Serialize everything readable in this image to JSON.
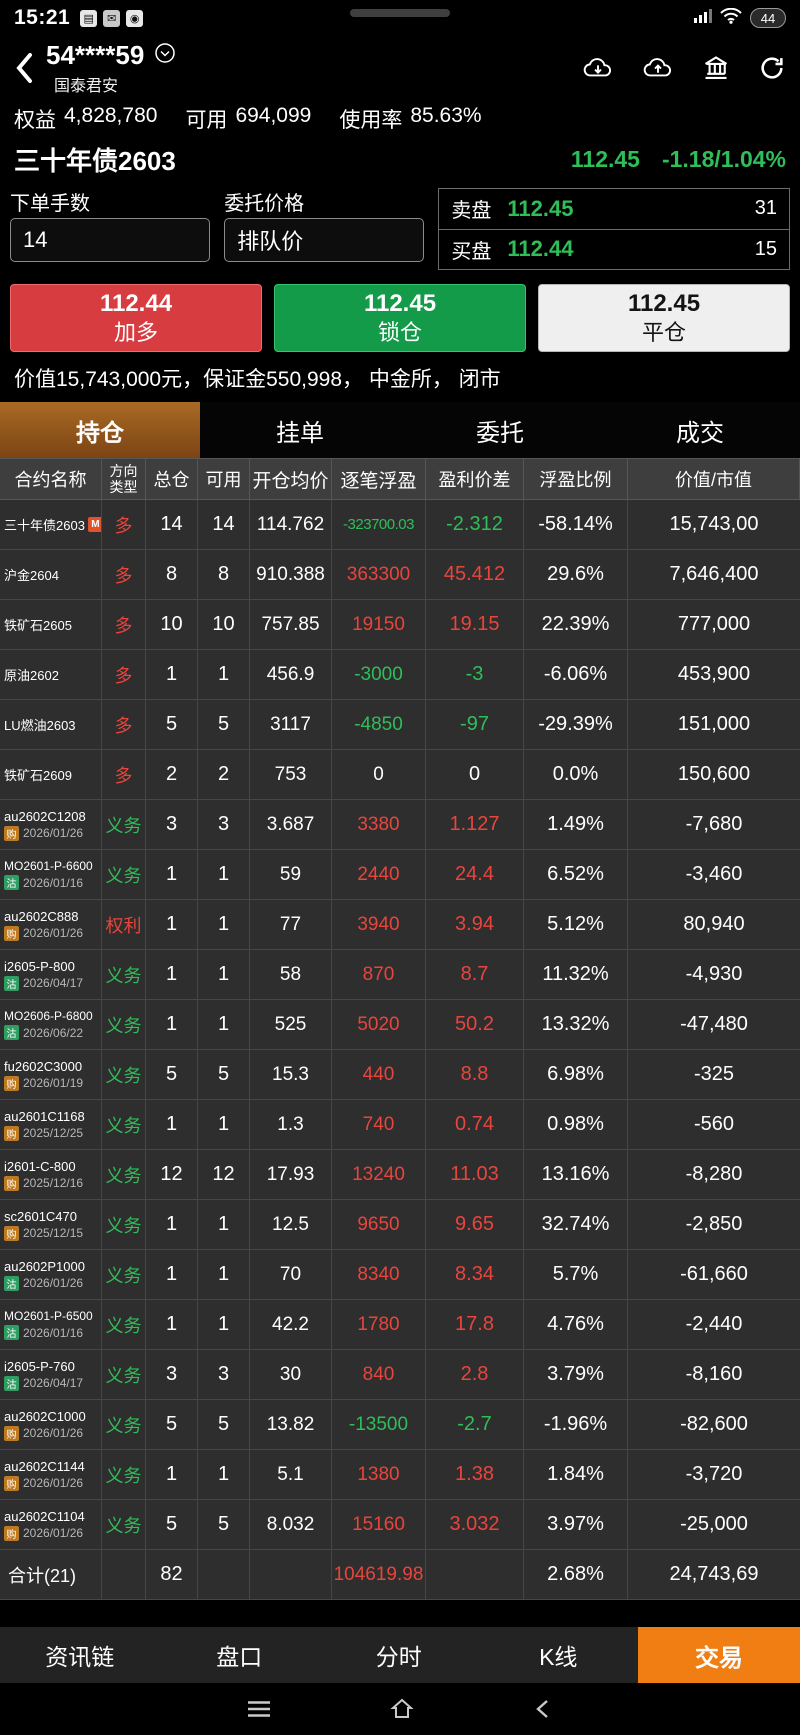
{
  "colors": {
    "up": "#e8453c",
    "down": "#2fbe58",
    "flat": "#ffffff",
    "accent_orange": "#f07e13",
    "tab_active_brown": "#96591f"
  },
  "status_bar": {
    "time": "15:21",
    "battery": "44"
  },
  "header": {
    "account": "54****59",
    "broker": "国泰君安"
  },
  "account_summary": [
    {
      "label": "权益",
      "value": "4,828,780"
    },
    {
      "label": "可用",
      "value": "694,099"
    },
    {
      "label": "使用率",
      "value": "85.63%"
    }
  ],
  "quote": {
    "name": "三十年债2603",
    "price": "112.45",
    "change": "-1.18/1.04%"
  },
  "order": {
    "qty_label": "下单手数",
    "qty": "14",
    "price_label": "委托价格",
    "price_mode": "排队价",
    "ask_label": "卖盘",
    "ask_price": "112.45",
    "ask_vol": "31",
    "bid_label": "买盘",
    "bid_price": "112.44",
    "bid_vol": "15"
  },
  "actions": {
    "buy": {
      "price": "112.44",
      "label": "加多"
    },
    "lock": {
      "price": "112.45",
      "label": "锁仓"
    },
    "close": {
      "price": "112.45",
      "label": "平仓"
    }
  },
  "position_info": "价值15,743,000元，保证金550,998， 中金所， 闭市",
  "tabs": [
    {
      "label": "持仓",
      "active": true
    },
    {
      "label": "挂单",
      "active": false
    },
    {
      "label": "委托",
      "active": false
    },
    {
      "label": "成交",
      "active": false
    }
  ],
  "table": {
    "headers": [
      "合约名称",
      "方向|类型",
      "总仓",
      "可用",
      "开仓均价",
      "逐笔浮盈",
      "盈利价差",
      "浮盈比例",
      "价值/市值"
    ],
    "rows": [
      {
        "name": "三十年债2603",
        "tag": "M",
        "tag_type": "main",
        "date": "",
        "dir": "多",
        "dir_c": "u",
        "total": "14",
        "avail": "14",
        "avg": "114.762",
        "pnl": "-323700.03",
        "pnl_c": "d",
        "diff": "-2.312",
        "diff_c": "d",
        "ratio": "-58.14%",
        "value": "15,743,00"
      },
      {
        "name": "沪金2604",
        "tag": "",
        "tag_type": "",
        "date": "",
        "dir": "多",
        "dir_c": "u",
        "total": "8",
        "avail": "8",
        "avg": "910.388",
        "pnl": "363300",
        "pnl_c": "u",
        "diff": "45.412",
        "diff_c": "u",
        "ratio": "29.6%",
        "value": "7,646,400"
      },
      {
        "name": "铁矿石2605",
        "tag": "",
        "tag_type": "",
        "date": "",
        "dir": "多",
        "dir_c": "u",
        "total": "10",
        "avail": "10",
        "avg": "757.85",
        "pnl": "19150",
        "pnl_c": "u",
        "diff": "19.15",
        "diff_c": "u",
        "ratio": "22.39%",
        "value": "777,000"
      },
      {
        "name": "原油2602",
        "tag": "",
        "tag_type": "",
        "date": "",
        "dir": "多",
        "dir_c": "u",
        "total": "1",
        "avail": "1",
        "avg": "456.9",
        "pnl": "-3000",
        "pnl_c": "d",
        "diff": "-3",
        "diff_c": "d",
        "ratio": "-6.06%",
        "value": "453,900"
      },
      {
        "name": "LU燃油2603",
        "tag": "",
        "tag_type": "",
        "date": "",
        "dir": "多",
        "dir_c": "u",
        "total": "5",
        "avail": "5",
        "avg": "3117",
        "pnl": "-4850",
        "pnl_c": "d",
        "diff": "-97",
        "diff_c": "d",
        "ratio": "-29.39%",
        "value": "151,000"
      },
      {
        "name": "铁矿石2609",
        "tag": "",
        "tag_type": "",
        "date": "",
        "dir": "多",
        "dir_c": "u",
        "total": "2",
        "avail": "2",
        "avg": "753",
        "pnl": "0",
        "pnl_c": "f",
        "diff": "0",
        "diff_c": "f",
        "ratio": "0.0%",
        "value": "150,600"
      },
      {
        "name": "au2602C1208",
        "tag": "购",
        "tag_type": "call",
        "date": "2026/01/26",
        "dir": "义务",
        "dir_c": "d",
        "total": "3",
        "avail": "3",
        "avg": "3.687",
        "pnl": "3380",
        "pnl_c": "u",
        "diff": "1.127",
        "diff_c": "u",
        "ratio": "1.49%",
        "value": "-7,680"
      },
      {
        "name": "MO2601-P-6600",
        "tag": "沽",
        "tag_type": "put",
        "date": "2026/01/16",
        "dir": "义务",
        "dir_c": "d",
        "total": "1",
        "avail": "1",
        "avg": "59",
        "pnl": "2440",
        "pnl_c": "u",
        "diff": "24.4",
        "diff_c": "u",
        "ratio": "6.52%",
        "value": "-3,460"
      },
      {
        "name": "au2602C888",
        "tag": "购",
        "tag_type": "call",
        "date": "2026/01/26",
        "dir": "权利",
        "dir_c": "u",
        "total": "1",
        "avail": "1",
        "avg": "77",
        "pnl": "3940",
        "pnl_c": "u",
        "diff": "3.94",
        "diff_c": "u",
        "ratio": "5.12%",
        "value": "80,940"
      },
      {
        "name": "i2605-P-800",
        "tag": "沽",
        "tag_type": "put",
        "date": "2026/04/17",
        "dir": "义务",
        "dir_c": "d",
        "total": "1",
        "avail": "1",
        "avg": "58",
        "pnl": "870",
        "pnl_c": "u",
        "diff": "8.7",
        "diff_c": "u",
        "ratio": "11.32%",
        "value": "-4,930"
      },
      {
        "name": "MO2606-P-6800",
        "tag": "沽",
        "tag_type": "put",
        "date": "2026/06/22",
        "dir": "义务",
        "dir_c": "d",
        "total": "1",
        "avail": "1",
        "avg": "525",
        "pnl": "5020",
        "pnl_c": "u",
        "diff": "50.2",
        "diff_c": "u",
        "ratio": "13.32%",
        "value": "-47,480"
      },
      {
        "name": "fu2602C3000",
        "tag": "购",
        "tag_type": "call",
        "date": "2026/01/19",
        "dir": "义务",
        "dir_c": "d",
        "total": "5",
        "avail": "5",
        "avg": "15.3",
        "pnl": "440",
        "pnl_c": "u",
        "diff": "8.8",
        "diff_c": "u",
        "ratio": "6.98%",
        "value": "-325"
      },
      {
        "name": "au2601C1168",
        "tag": "购",
        "tag_type": "call",
        "date": "2025/12/25",
        "dir": "义务",
        "dir_c": "d",
        "total": "1",
        "avail": "1",
        "avg": "1.3",
        "pnl": "740",
        "pnl_c": "u",
        "diff": "0.74",
        "diff_c": "u",
        "ratio": "0.98%",
        "value": "-560"
      },
      {
        "name": "i2601-C-800",
        "tag": "购",
        "tag_type": "call",
        "date": "2025/12/16",
        "dir": "义务",
        "dir_c": "d",
        "total": "12",
        "avail": "12",
        "avg": "17.93",
        "pnl": "13240",
        "pnl_c": "u",
        "diff": "11.03",
        "diff_c": "u",
        "ratio": "13.16%",
        "value": "-8,280"
      },
      {
        "name": "sc2601C470",
        "tag": "购",
        "tag_type": "call",
        "date": "2025/12/15",
        "dir": "义务",
        "dir_c": "d",
        "total": "1",
        "avail": "1",
        "avg": "12.5",
        "pnl": "9650",
        "pnl_c": "u",
        "diff": "9.65",
        "diff_c": "u",
        "ratio": "32.74%",
        "value": "-2,850"
      },
      {
        "name": "au2602P1000",
        "tag": "沽",
        "tag_type": "put",
        "date": "2026/01/26",
        "dir": "义务",
        "dir_c": "d",
        "total": "1",
        "avail": "1",
        "avg": "70",
        "pnl": "8340",
        "pnl_c": "u",
        "diff": "8.34",
        "diff_c": "u",
        "ratio": "5.7%",
        "value": "-61,660"
      },
      {
        "name": "MO2601-P-6500",
        "tag": "沽",
        "tag_type": "put",
        "date": "2026/01/16",
        "dir": "义务",
        "dir_c": "d",
        "total": "1",
        "avail": "1",
        "avg": "42.2",
        "pnl": "1780",
        "pnl_c": "u",
        "diff": "17.8",
        "diff_c": "u",
        "ratio": "4.76%",
        "value": "-2,440"
      },
      {
        "name": "i2605-P-760",
        "tag": "沽",
        "tag_type": "put",
        "date": "2026/04/17",
        "dir": "义务",
        "dir_c": "d",
        "total": "3",
        "avail": "3",
        "avg": "30",
        "pnl": "840",
        "pnl_c": "u",
        "diff": "2.8",
        "diff_c": "u",
        "ratio": "3.79%",
        "value": "-8,160"
      },
      {
        "name": "au2602C1000",
        "tag": "购",
        "tag_type": "call",
        "date": "2026/01/26",
        "dir": "义务",
        "dir_c": "d",
        "total": "5",
        "avail": "5",
        "avg": "13.82",
        "pnl": "-13500",
        "pnl_c": "d",
        "diff": "-2.7",
        "diff_c": "d",
        "ratio": "-1.96%",
        "value": "-82,600"
      },
      {
        "name": "au2602C1144",
        "tag": "购",
        "tag_type": "call",
        "date": "2026/01/26",
        "dir": "义务",
        "dir_c": "d",
        "total": "1",
        "avail": "1",
        "avg": "5.1",
        "pnl": "1380",
        "pnl_c": "u",
        "diff": "1.38",
        "diff_c": "u",
        "ratio": "1.84%",
        "value": "-3,720"
      },
      {
        "name": "au2602C1104",
        "tag": "购",
        "tag_type": "call",
        "date": "2026/01/26",
        "dir": "义务",
        "dir_c": "d",
        "total": "5",
        "avail": "5",
        "avg": "8.032",
        "pnl": "15160",
        "pnl_c": "u",
        "diff": "3.032",
        "diff_c": "u",
        "ratio": "3.97%",
        "value": "-25,000"
      }
    ],
    "total": {
      "name": "合计(21)",
      "total": "82",
      "pnl": "104619.98",
      "pnl_c": "u",
      "ratio": "2.68%",
      "value": "24,743,69"
    }
  },
  "footer": {
    "items": [
      "资讯链",
      "盘口",
      "分时",
      "K线"
    ],
    "trade": "交易"
  }
}
